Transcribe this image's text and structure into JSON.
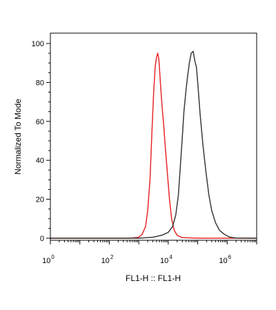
{
  "chart_data": {
    "type": "line",
    "title": "",
    "xlabel": "FL1-H :: FL1-H",
    "ylabel": "Normalized To Mode",
    "x_scale": "log",
    "xlim": [
      1,
      10000000
    ],
    "ylim": [
      0,
      100
    ],
    "x_tick_base": "10",
    "x_tick_exponents": [
      "0",
      "2",
      "4",
      "6"
    ],
    "y_ticks": [
      "0",
      "20",
      "40",
      "60",
      "80",
      "100"
    ],
    "grid": false,
    "legend": "none",
    "series": [
      {
        "color": "#e8282a",
        "x": [
          1,
          500,
          1000,
          1300,
          1700,
          2000,
          2400,
          2800,
          3200,
          3600,
          4000,
          4400,
          4800,
          5300,
          6000,
          7000,
          8000,
          9500,
          11000,
          13000,
          16000,
          20000,
          30000,
          100000,
          10000000
        ],
        "y": [
          0,
          0,
          0.5,
          2,
          6,
          14,
          30,
          55,
          75,
          88,
          93,
          95,
          92,
          82,
          70,
          58,
          46,
          32,
          20,
          10,
          4,
          1.5,
          0.3,
          0,
          0
        ]
      },
      {
        "color": "#3a3a3a",
        "x": [
          1,
          1000,
          3000,
          6000,
          10000,
          14000,
          18000,
          22000,
          26000,
          30000,
          34000,
          40000,
          46000,
          52000,
          60000,
          70000,
          80000,
          90000,
          100000,
          120000,
          150000,
          190000,
          240000,
          300000,
          400000,
          550000,
          800000,
          1200000,
          2000000,
          10000000
        ],
        "y": [
          0,
          0,
          0.5,
          1.5,
          3,
          6,
          12,
          22,
          38,
          52,
          65,
          76,
          84,
          90,
          95,
          96,
          91,
          88,
          80,
          64,
          48,
          34,
          22,
          14,
          8,
          4,
          2,
          0.6,
          0.1,
          0
        ]
      }
    ]
  }
}
